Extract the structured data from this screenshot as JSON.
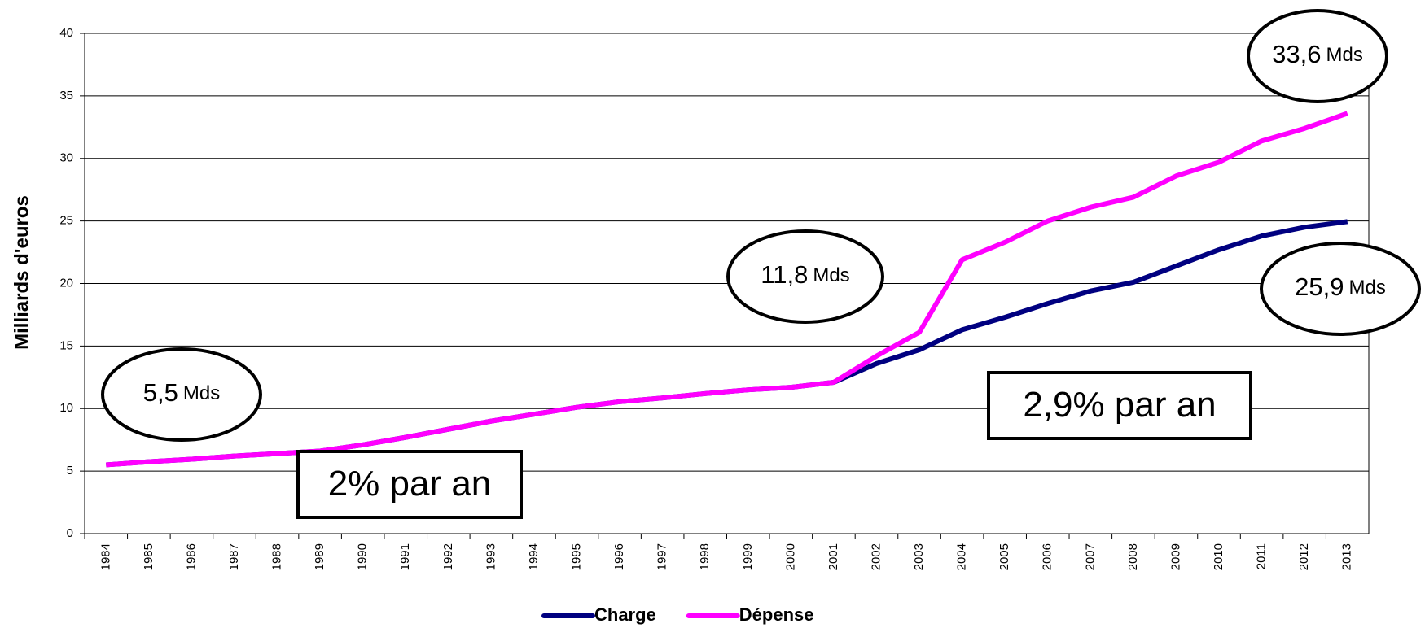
{
  "chart_data": {
    "type": "line",
    "y_label": "Milliards d'euros",
    "categories": [
      "1984",
      "1985",
      "1986",
      "1987",
      "1988",
      "1989",
      "1990",
      "1991",
      "1992",
      "1993",
      "1994",
      "1995",
      "1996",
      "1997",
      "1998",
      "1999",
      "2000",
      "2001",
      "2002",
      "2003",
      "2004",
      "2005",
      "2006",
      "2007",
      "2008",
      "2009",
      "2010",
      "2011",
      "2012",
      "2013"
    ],
    "series": [
      {
        "name": "Charge",
        "color": "#000080",
        "values": [
          5.5,
          5.75,
          5.95,
          6.2,
          6.4,
          6.6,
          7.1,
          7.7,
          8.35,
          9.0,
          9.55,
          10.1,
          10.55,
          10.85,
          11.2,
          11.5,
          11.7,
          12.1,
          13.6,
          14.7,
          16.3,
          17.3,
          18.4,
          19.4,
          20.1,
          21.4,
          22.7,
          23.8,
          24.5,
          24.95
        ]
      },
      {
        "name": "Dépense",
        "color": "#ff00ff",
        "values": [
          5.5,
          5.75,
          5.95,
          6.2,
          6.4,
          6.6,
          7.1,
          7.7,
          8.35,
          9.0,
          9.55,
          10.1,
          10.55,
          10.85,
          11.2,
          11.5,
          11.7,
          12.1,
          14.2,
          16.1,
          21.9,
          23.3,
          25.0,
          26.1,
          26.9,
          28.6,
          29.7,
          31.4,
          32.4,
          33.6
        ]
      }
    ],
    "ylim": [
      0,
      40
    ],
    "yticks": [
      0,
      5,
      10,
      15,
      20,
      25,
      30,
      35,
      40
    ],
    "grid": true,
    "legend": "bottom",
    "callouts": [
      {
        "amount": "5,5",
        "unit": "Mds"
      },
      {
        "amount": "11,8",
        "unit": "Mds"
      },
      {
        "amount": "33,6",
        "unit": "Mds"
      },
      {
        "amount": "25,9",
        "unit": "Mds"
      }
    ],
    "rates": [
      "2% par an",
      "2,9% par an"
    ]
  }
}
